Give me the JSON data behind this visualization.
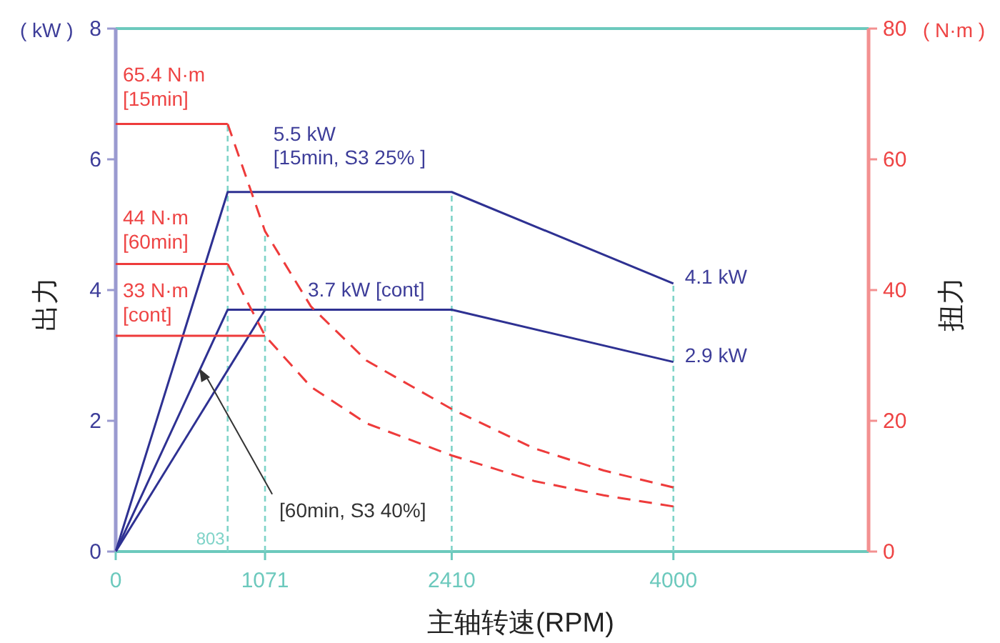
{
  "chart_data": {
    "type": "line",
    "xlabel": "主轴转速(RPM)",
    "ylabel": "出力",
    "y2label": "扭力",
    "xlim": [
      0,
      5400
    ],
    "xticks": [
      0,
      1071,
      2410,
      4000
    ],
    "ylim": [
      0,
      8
    ],
    "yticks": [
      0,
      2,
      4,
      6,
      8
    ],
    "y2lim": [
      0,
      80
    ],
    "y2ticks": [
      0,
      20,
      40,
      60,
      80
    ],
    "series": [
      {
        "color": "#2e3192",
        "line_style": "solid",
        "x": [
          0,
          803,
          2410,
          4000
        ],
        "values": [
          0,
          5.5,
          5.5,
          4.1
        ]
      },
      {
        "color": "#2e3192",
        "line_style": "solid",
        "x": [
          0,
          803,
          2410,
          4000
        ],
        "values": [
          0,
          3.7,
          3.7,
          2.9
        ]
      },
      {
        "color": "#2e3192",
        "line_style": "solid",
        "x": [
          0,
          1071
        ],
        "values": [
          0,
          3.7
        ]
      },
      {
        "axis": "y2",
        "color": "#ee3b3b",
        "line_style": "solid",
        "x": [
          0,
          803
        ],
        "values": [
          65.4,
          65.4
        ]
      },
      {
        "axis": "y2",
        "color": "#ee3b3b",
        "line_style": "solid",
        "x": [
          0,
          803
        ],
        "values": [
          44,
          44
        ]
      },
      {
        "axis": "y2",
        "color": "#ee3b3b",
        "line_style": "solid",
        "x": [
          0,
          1071
        ],
        "values": [
          33,
          33
        ]
      },
      {
        "axis": "y2",
        "color": "#ee3b3b",
        "line_style": "dashed",
        "x": [
          803,
          1071,
          1400,
          1800,
          2410,
          3000,
          3500,
          4000
        ],
        "values": [
          65.4,
          49,
          37.5,
          29.2,
          21.8,
          15.8,
          12.4,
          9.8
        ]
      },
      {
        "axis": "y2",
        "color": "#ee3b3b",
        "line_style": "dashed",
        "x": [
          803,
          1071,
          1400,
          1800,
          2410,
          3000,
          3500,
          4000
        ],
        "values": [
          44,
          33,
          25.2,
          19.6,
          14.7,
          10.8,
          8.6,
          6.9
        ]
      }
    ],
    "ref_lines": [
      {
        "axis": "x",
        "value": 803,
        "label": "803",
        "color": "#7fd3c8",
        "line_style": "dashed"
      },
      {
        "axis": "x",
        "value": 1071,
        "color": "#7fd3c8",
        "line_style": "dashed"
      },
      {
        "axis": "x",
        "value": 2410,
        "color": "#7fd3c8",
        "line_style": "dashed"
      },
      {
        "axis": "x",
        "value": 4000,
        "color": "#7fd3c8",
        "line_style": "dashed"
      }
    ],
    "annotations": [
      "( kW )",
      "( N·m )",
      "65.4 N·m\n[15min]",
      "44 N·m\n[60min]",
      "33 N·m\n[cont]",
      {
        "text": "5.5 kW\n[15min, S3 25% ]",
        "x": 803,
        "y": 5.5
      },
      {
        "text": "3.7 kW [cont]",
        "x": 1071,
        "y": 3.7
      },
      {
        "text": "4.1 kW",
        "x": 4000,
        "y": 4.1
      },
      {
        "text": "2.9 kW",
        "x": 4000,
        "y": 2.9
      },
      {
        "text": "[60min, S3 40%]",
        "x": 600,
        "y": 2.8
      }
    ]
  }
}
